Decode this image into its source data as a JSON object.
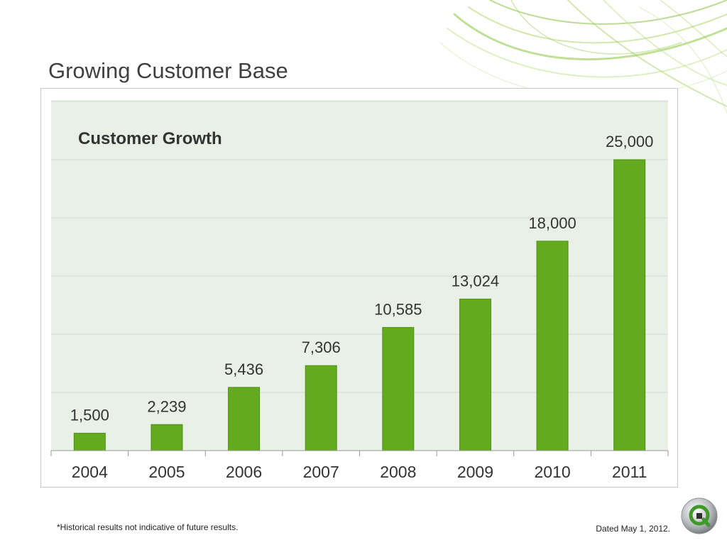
{
  "slide": {
    "title": "Growing Customer Base",
    "footnote": "*Historical results not indicative of future results.",
    "dated": "Dated May 1, 2012."
  },
  "colors": {
    "bar": "#62ab1f",
    "bar_stroke": "#4e8f16",
    "plot_background": "#e9f0e6",
    "gridline": "#d4d9d2",
    "text": "#333333"
  },
  "logo": {
    "icon": "qlikview-q-logo-icon"
  },
  "chart_data": {
    "type": "bar",
    "title": "Customer Growth",
    "categories": [
      "2004",
      "2005",
      "2006",
      "2007",
      "2008",
      "2009",
      "2010",
      "2011"
    ],
    "values": [
      1500,
      2239,
      5436,
      7306,
      10585,
      13024,
      18000,
      25000
    ],
    "value_labels": [
      "1,500",
      "2,239",
      "5,436",
      "7,306",
      "10,585",
      "13,024",
      "18,000",
      "25,000"
    ],
    "xlabel": "",
    "ylabel": "",
    "ylim": [
      0,
      30000
    ],
    "grid": true,
    "legend": "none"
  }
}
